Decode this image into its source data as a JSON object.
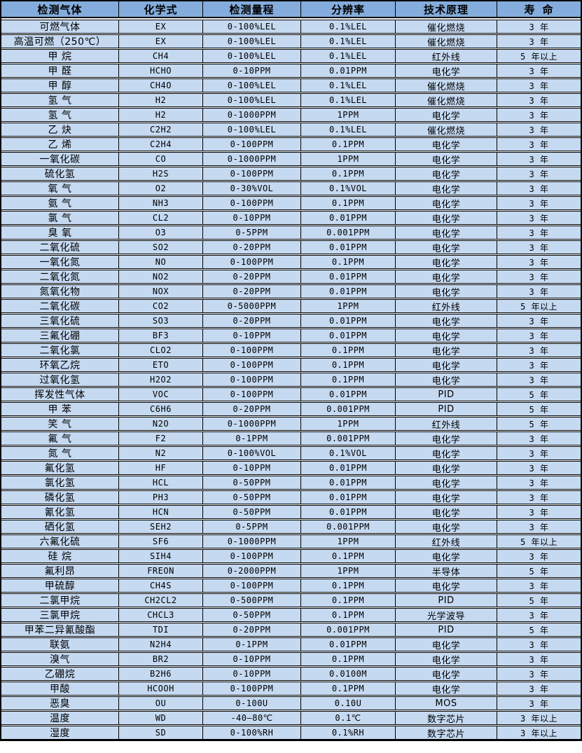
{
  "colors": {
    "header_bg": "#84acdc",
    "row_bg": "#c5d9f1",
    "border": "#000000",
    "text": "#000000",
    "gap": "#ffffff"
  },
  "table": {
    "columns": [
      "检测气体",
      "化学式",
      "检测量程",
      "分辨率",
      "技术原理",
      "寿 命"
    ],
    "rows": [
      [
        "可燃气体",
        "EX",
        "0-100%LEL",
        "0.1%LEL",
        "催化燃烧",
        "3 年"
      ],
      [
        "高温可燃（250℃）",
        "EX",
        "0-100%LEL",
        "0.1%LEL",
        "催化燃烧",
        "3 年"
      ],
      [
        "甲 烷",
        "CH4",
        "0-100%LEL",
        "0.1%LEL",
        "红外线",
        "5 年以上"
      ],
      [
        "甲 醛",
        "HCHO",
        "0-10PPM",
        "0.01PPM",
        "电化学",
        "3 年"
      ],
      [
        "甲 醇",
        "CH4O",
        "0-100%LEL",
        "0.1%LEL",
        "催化燃烧",
        "3 年"
      ],
      [
        "氢 气",
        "H2",
        "0-100%LEL",
        "0.1%LEL",
        "催化燃烧",
        "3 年"
      ],
      [
        "氢 气",
        "H2",
        "0-1000PPM",
        "1PPM",
        "电化学",
        "3 年"
      ],
      [
        "乙 炔",
        "C2H2",
        "0-100%LEL",
        "0.1%LEL",
        "催化燃烧",
        "3 年"
      ],
      [
        "乙 烯",
        "C2H4",
        "0-100PPM",
        "0.1PPM",
        "电化学",
        "3 年"
      ],
      [
        "一氧化碳",
        "CO",
        "0-1000PPM",
        "1PPM",
        "电化学",
        "3 年"
      ],
      [
        "硫化氢",
        "H2S",
        "0-100PPM",
        "0.1PPM",
        "电化学",
        "3 年"
      ],
      [
        "氧 气",
        "O2",
        "0-30%VOL",
        "0.1%VOL",
        "电化学",
        "3 年"
      ],
      [
        "氨 气",
        "NH3",
        "0-100PPM",
        "0.1PPM",
        "电化学",
        "3 年"
      ],
      [
        "氯 气",
        "CL2",
        "0-10PPM",
        "0.01PPM",
        "电化学",
        "3 年"
      ],
      [
        "臭 氧",
        "O3",
        "0-5PPM",
        "0.001PPM",
        "电化学",
        "3 年"
      ],
      [
        "二氧化硫",
        "SO2",
        "0-20PPM",
        "0.01PPM",
        "电化学",
        "3 年"
      ],
      [
        "一氧化氮",
        "NO",
        "0-100PPM",
        "0.1PPM",
        "电化学",
        "3 年"
      ],
      [
        "二氧化氮",
        "NO2",
        "0-20PPM",
        "0.01PPM",
        "电化学",
        "3 年"
      ],
      [
        "氮氧化物",
        "NOX",
        "0-20PPM",
        "0.01PPM",
        "电化学",
        "3 年"
      ],
      [
        "二氧化碳",
        "CO2",
        "0-5000PPM",
        "1PPM",
        "红外线",
        "5 年以上"
      ],
      [
        "三氧化硫",
        "SO3",
        "0-20PPM",
        "0.01PPM",
        "电化学",
        "3 年"
      ],
      [
        "三氟化硼",
        "BF3",
        "0-10PPM",
        "0.01PPM",
        "电化学",
        "3 年"
      ],
      [
        "二氧化氯",
        "CLO2",
        "0-100PPM",
        "0.1PPM",
        "电化学",
        "3 年"
      ],
      [
        "环氧乙烷",
        "ETO",
        "0-100PPM",
        "0.1PPM",
        "电化学",
        "3 年"
      ],
      [
        "过氧化氢",
        "H2O2",
        "0-100PPM",
        "0.1PPM",
        "电化学",
        "3 年"
      ],
      [
        "挥发性气体",
        "VOC",
        "0-100PPM",
        "0.01PPM",
        "PID",
        "5 年"
      ],
      [
        "甲 苯",
        "C6H6",
        "0-20PPM",
        "0.001PPM",
        "PID",
        "5 年"
      ],
      [
        "笑 气",
        "N2O",
        "0-1000PPM",
        "1PPM",
        "红外线",
        "5 年"
      ],
      [
        "氟 气",
        "F2",
        "0-1PPM",
        "0.001PPM",
        "电化学",
        "3 年"
      ],
      [
        "氮 气",
        "N2",
        "0-100%VOL",
        "0.1%VOL",
        "电化学",
        "3 年"
      ],
      [
        "氟化氢",
        "HF",
        "0-10PPM",
        "0.01PPM",
        "电化学",
        "3 年"
      ],
      [
        "氯化氢",
        "HCL",
        "0-50PPM",
        "0.01PPM",
        "电化学",
        "3 年"
      ],
      [
        "磷化氢",
        "PH3",
        "0-50PPM",
        "0.01PPM",
        "电化学",
        "3 年"
      ],
      [
        "氰化氢",
        "HCN",
        "0-50PPM",
        "0.01PPM",
        "电化学",
        "3 年"
      ],
      [
        "硒化氢",
        "SEH2",
        "0-5PPM",
        "0.001PPM",
        "电化学",
        "3 年"
      ],
      [
        "六氟化硫",
        "SF6",
        "0-1000PPM",
        "1PPM",
        "红外线",
        "5 年以上"
      ],
      [
        "硅 烷",
        "SIH4",
        "0-100PPM",
        "0.1PPM",
        "电化学",
        "3 年"
      ],
      [
        "氟利昂",
        "FREON",
        "0-2000PPM",
        "1PPM",
        "半导体",
        "5 年"
      ],
      [
        "甲硫醇",
        "CH4S",
        "0-100PPM",
        "0.1PPM",
        "电化学",
        "3 年"
      ],
      [
        "二氯甲烷",
        "CH2CL2",
        "0-500PPM",
        "0.1PPM",
        "PID",
        "5 年"
      ],
      [
        "三氯甲烷",
        "CHCL3",
        "0-50PPM",
        "0.1PPM",
        "光学波导",
        "3 年"
      ],
      [
        "甲苯二异氰酸酯",
        "TDI",
        "0-20PPM",
        "0.001PPM",
        "PID",
        "5 年"
      ],
      [
        "联氨",
        "N2H4",
        "0-1PPM",
        "0.01PPM",
        "电化学",
        "3 年"
      ],
      [
        "溴气",
        "BR2",
        "0-10PPM",
        "0.1PPM",
        "电化学",
        "3 年"
      ],
      [
        "乙硼烷",
        "B2H6",
        "0-10PPM",
        "0.0100M",
        "电化学",
        "3 年"
      ],
      [
        "甲酸",
        "HCOOH",
        "0-100PPM",
        "0.1PPM",
        "电化学",
        "3 年"
      ],
      [
        "恶臭",
        "OU",
        "0-100U",
        "0.10U",
        "MOS",
        "3 年"
      ],
      [
        "温度",
        "WD",
        "-40—80℃",
        "0.1℃",
        "数字芯片",
        "3 年以上"
      ],
      [
        "湿度",
        "SD",
        "0-100%RH",
        "0.1%RH",
        "数字芯片",
        "3 年以上"
      ]
    ]
  }
}
